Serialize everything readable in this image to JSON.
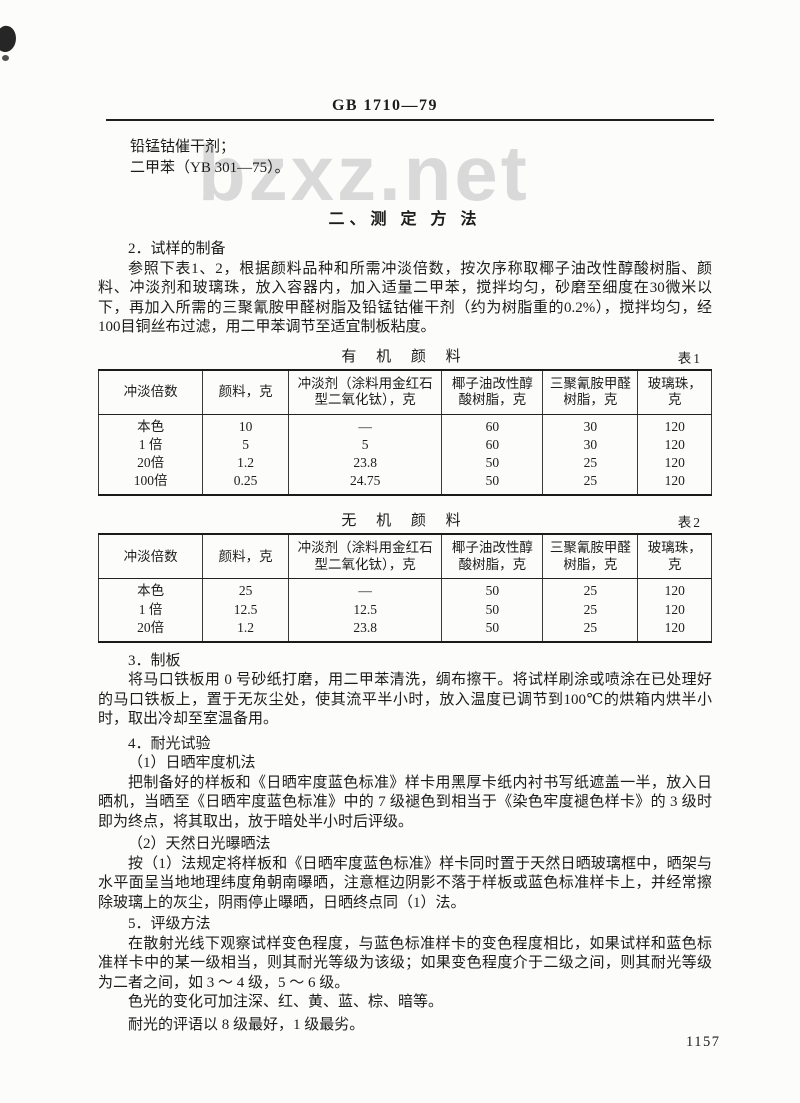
{
  "page": {
    "doc_number": "GB 1710—79",
    "watermark": "bzxz.net",
    "page_number": "1157"
  },
  "preamble": {
    "line1": "铅锰钴催干剂；",
    "line2": "二甲苯（YB 301—75）。"
  },
  "section_title": "二、测 定 方 法",
  "sample_prep": {
    "heading": "2．试样的制备",
    "body": "参照下表1、2，根据颜料品种和所需冲淡倍数，按次序称取椰子油改性醇酸树脂、颜料、冲淡剂和玻璃珠，放入容器内，加入适量二甲苯，搅拌均匀，砂磨至细度在30微米以下，再加入所需的三聚氰胺甲醛树脂及铅锰钴催干剂（约为树脂重的0.2%），搅拌均匀，经100目铜丝布过滤，用二甲苯调节至适宜制板粘度。"
  },
  "tables": {
    "organic": {
      "title": "有 机 颜 料",
      "label": "表1",
      "headers": [
        "冲淡倍数",
        "颜料，克",
        "冲淡剂（涂料用金红石型二氧化钛），克",
        "椰子油改性醇酸树脂，克",
        "三聚氰胺甲醛树脂，克",
        "玻璃珠，克"
      ],
      "rows": [
        [
          "本色",
          "10",
          "—",
          "60",
          "30",
          "120"
        ],
        [
          "1 倍",
          "5",
          "5",
          "60",
          "30",
          "120"
        ],
        [
          "20倍",
          "1.2",
          "23.8",
          "50",
          "25",
          "120"
        ],
        [
          "100倍",
          "0.25",
          "24.75",
          "50",
          "25",
          "120"
        ]
      ]
    },
    "inorganic": {
      "title": "无 机 颜 料",
      "label": "表2",
      "headers": [
        "冲淡倍数",
        "颜料，克",
        "冲淡剂（涂料用金红石型二氧化钛），克",
        "椰子油改性醇酸树脂，克",
        "三聚氰胺甲醛树脂，克",
        "玻璃珠，克"
      ],
      "rows": [
        [
          "本色",
          "25",
          "—",
          "50",
          "25",
          "120"
        ],
        [
          "1 倍",
          "12.5",
          "12.5",
          "50",
          "25",
          "120"
        ],
        [
          "20倍",
          "1.2",
          "23.8",
          "50",
          "25",
          "120"
        ]
      ]
    }
  },
  "plate_making": {
    "heading": "3．制板",
    "body": "将马口铁板用 0 号砂纸打磨，用二甲苯清洗，绸布擦干。将试样刷涂或喷涂在已处理好的马口铁板上，置于无灰尘处，使其流平半小时，放入温度已调节到100℃的烘箱内烘半小时，取出冷却至室温备用。"
  },
  "light_fastness": {
    "heading": "4．耐光试验",
    "method1_heading": "（1）日晒牢度机法",
    "method1_body": "把制备好的样板和《日晒牢度蓝色标准》样卡用黑厚卡纸内衬书写纸遮盖一半，放入日晒机，当晒至《日晒牢度蓝色标准》中的 7 级褪色到相当于《染色牢度褪色样卡》的 3 级时即为终点，将其取出，放于暗处半小时后评级。",
    "method2_heading": "（2）天然日光曝晒法",
    "method2_body": "按（1）法规定将样板和《日晒牢度蓝色标准》样卡同时置于天然日晒玻璃框中，晒架与水平面呈当地地理纬度角朝南曝晒，注意框边阴影不落于样板或蓝色标准样卡上，并经常擦除玻璃上的灰尘，阴雨停止曝晒，日晒终点同（1）法。"
  },
  "grading": {
    "heading": "5．评级方法",
    "body": "在散射光线下观察试样变色程度，与蓝色标准样卡的变色程度相比，如果试样和蓝色标准样卡中的某一级相当，则其耐光等级为该级；如果变色程度介于二级之间，则其耐光等级为二者之间，如 3 ～ 4 级，5 ～ 6 级。",
    "note1": "色光的变化可加注深、红、黄、蓝、棕、暗等。",
    "note2": "耐光的评语以 8 级最好，1 级最劣。"
  }
}
